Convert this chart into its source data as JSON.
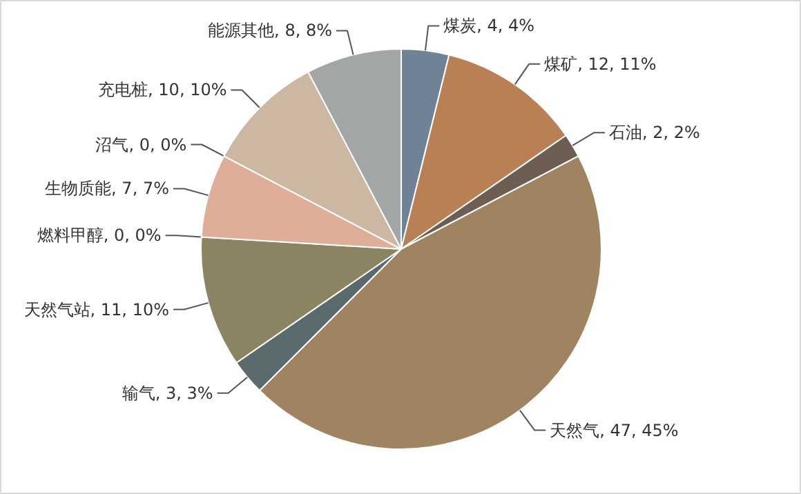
{
  "chart_data": {
    "type": "pie",
    "categories": [
      "煤炭",
      "煤矿",
      "石油",
      "天然气",
      "输气",
      "天然气站",
      "燃料甲醇",
      "生物质能",
      "沼气",
      "充电桩",
      "能源其他"
    ],
    "values": [
      4,
      12,
      2,
      47,
      3,
      11,
      0,
      7,
      0,
      10,
      8
    ],
    "value_labels": [
      "4, 4%",
      "12, 11%",
      "2, 2%",
      "47, 45%",
      "3, 3%",
      "11, 10%",
      "0, 0%",
      "7, 7%",
      "0, 0%",
      "10, 10%",
      "8, 8%"
    ],
    "colors": [
      "#6f8296",
      "#b98055",
      "#6e5d52",
      "#a08461",
      "#5b6a6c",
      "#8a8462",
      "#7f7f7f",
      "#dfae98",
      "#999999",
      "#cbb7a2",
      "#a3a6a6"
    ]
  }
}
